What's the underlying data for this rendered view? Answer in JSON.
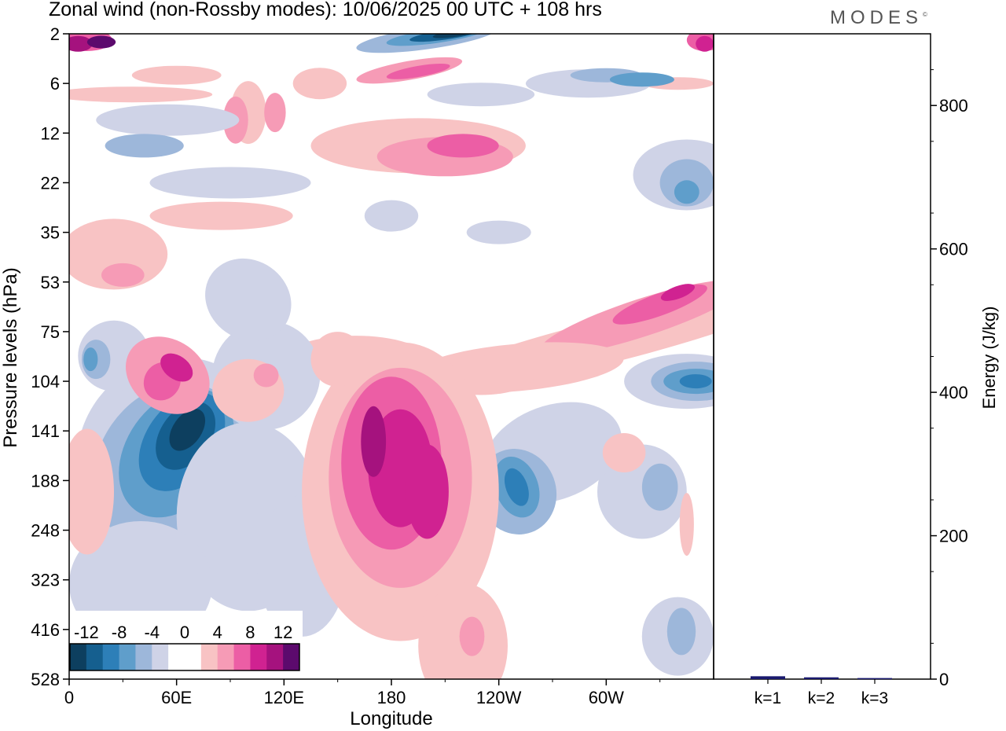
{
  "title": "Zonal wind (non-Rossby modes):  10/06/2025  00 UTC  + 108 hrs",
  "brand": "MODES",
  "brand_mark": "©",
  "chart_data": [
    {
      "type": "heatmap",
      "xlabel": "Longitude",
      "ylabel": "Pressure levels (hPa)",
      "x_ticks": [
        "0",
        "60E",
        "120E",
        "180",
        "120W",
        "60W"
      ],
      "x_tick_values": [
        0,
        60,
        120,
        180,
        240,
        300
      ],
      "xlim": [
        0,
        360
      ],
      "y_ticks": [
        "2",
        "6",
        "12",
        "22",
        "35",
        "53",
        "75",
        "104",
        "141",
        "188",
        "248",
        "323",
        "416",
        "528"
      ],
      "y_scale": "log-sigma levels (top 2 hPa, bottom 528 hPa)",
      "colorbar": {
        "labels": [
          "-12",
          "-8",
          "-4",
          "0",
          "4",
          "8",
          "12"
        ],
        "colors": [
          "#0d3f5f",
          "#155f8f",
          "#2d7fb8",
          "#5f9ecb",
          "#9db7da",
          "#cfd3e7",
          "#ffffff",
          "#ffffff",
          "#f8c3c4",
          "#f69bb6",
          "#ec5ea5",
          "#d02291",
          "#a5127e",
          "#5c0a6d"
        ],
        "placement": "bottom-left inside plot"
      },
      "features": [
        {
          "name": "neg jet lower-left",
          "lon": 62,
          "p": 141,
          "value": -13
        },
        {
          "name": "neg stratosphere",
          "lon": 205,
          "p": 2,
          "value": -12
        },
        {
          "name": "pos tropical",
          "lon": 185,
          "p": 188,
          "value": 9
        },
        {
          "name": "pos rising band",
          "lon": 335,
          "p": 70,
          "value": 8
        },
        {
          "name": "neg 60W upper",
          "lon": 345,
          "p": 104,
          "value": -8
        },
        {
          "name": "pos dateline stratos",
          "lon": 10,
          "p": 2,
          "value": 9
        }
      ]
    },
    {
      "type": "bar",
      "categories": [
        "k=1",
        "k=2",
        "k=3"
      ],
      "values": [
        4,
        2.5,
        1.5
      ],
      "ylabel": "Energy (J/kg)",
      "ylim": [
        0,
        900
      ],
      "y_ticks": [
        0,
        200,
        400,
        600,
        800
      ],
      "bar_color": "#1a1a6e",
      "grid": false
    }
  ]
}
